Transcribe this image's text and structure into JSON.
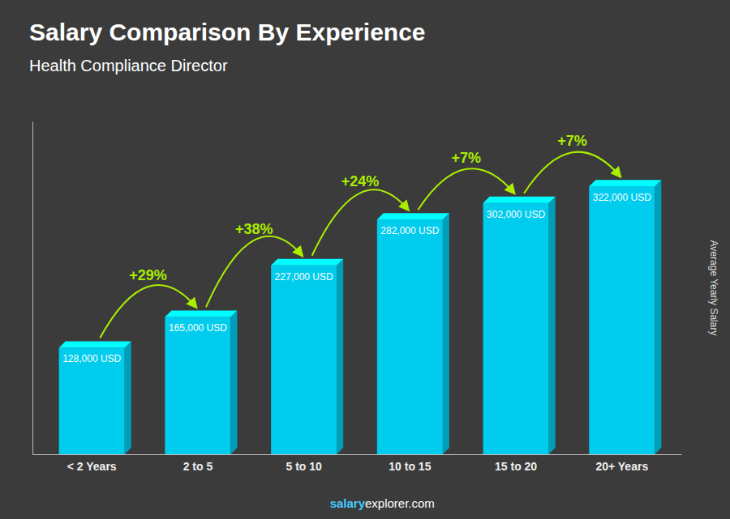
{
  "chart_data": {
    "type": "bar",
    "title": "Salary Comparison By Experience",
    "subtitle": "Health Compliance Director",
    "ylabel": "Average Yearly Salary",
    "categories": [
      "< 2 Years",
      "2 to 5",
      "5 to 10",
      "10 to 15",
      "15 to 20",
      "20+ Years"
    ],
    "values": [
      128000,
      165000,
      227000,
      282000,
      302000,
      322000
    ],
    "value_labels": [
      "128,000 USD",
      "165,000 USD",
      "227,000 USD",
      "282,000 USD",
      "302,000 USD",
      "322,000 USD"
    ],
    "data_labels": true,
    "color": "#00CCEE",
    "annotations": [
      {
        "text": "+29%",
        "color": "#AAEE00"
      },
      {
        "text": "+38%",
        "color": "#AAEE00"
      },
      {
        "text": "+24%",
        "color": "#AAEE00"
      },
      {
        "text": "+7%",
        "color": "#AAEE00"
      },
      {
        "text": "+7%",
        "color": "#AAEE00"
      }
    ],
    "footer": [
      {
        "text": "salary",
        "color": "#44CCFF"
      },
      {
        "text": "explorer.com",
        "color": "#FFFFFF"
      }
    ],
    "ylim": [
      0,
      400000
    ],
    "tick_labels": "x",
    "grid": false
  }
}
